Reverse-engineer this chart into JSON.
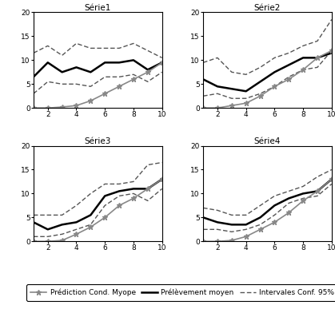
{
  "x": [
    1,
    2,
    3,
    4,
    5,
    6,
    7,
    8,
    9,
    10
  ],
  "series": {
    "Serie1": {
      "mean": [
        6.5,
        9.5,
        7.5,
        8.5,
        7.5,
        9.5,
        9.5,
        10.0,
        8.0,
        9.5
      ],
      "pred": [
        0.0,
        0.0,
        0.2,
        0.5,
        1.5,
        3.0,
        4.5,
        6.0,
        7.5,
        9.5
      ],
      "ci_upper": [
        11.5,
        13.0,
        11.0,
        13.5,
        12.5,
        12.5,
        12.5,
        13.5,
        12.0,
        10.5
      ],
      "ci_lower": [
        3.0,
        5.5,
        5.0,
        5.0,
        4.5,
        6.5,
        6.5,
        7.0,
        5.5,
        7.5
      ]
    },
    "Serie2": {
      "mean": [
        6.0,
        4.5,
        4.0,
        3.5,
        5.5,
        7.5,
        9.0,
        10.5,
        10.5,
        11.5
      ],
      "pred": [
        0.0,
        0.0,
        0.5,
        1.0,
        2.5,
        4.5,
        6.0,
        8.0,
        10.5,
        12.0
      ],
      "ci_upper": [
        9.5,
        10.5,
        7.5,
        7.0,
        8.5,
        10.5,
        11.5,
        13.0,
        14.0,
        18.5
      ],
      "ci_lower": [
        2.5,
        3.0,
        2.0,
        2.0,
        3.0,
        4.5,
        6.5,
        8.0,
        8.5,
        12.0
      ]
    },
    "Serie3": {
      "mean": [
        4.0,
        2.5,
        3.5,
        4.0,
        5.5,
        9.5,
        10.5,
        11.0,
        11.0,
        13.0
      ],
      "pred": [
        0.0,
        0.0,
        0.2,
        1.5,
        3.0,
        5.0,
        7.5,
        9.0,
        11.0,
        13.0
      ],
      "ci_upper": [
        5.5,
        5.5,
        5.5,
        7.5,
        10.0,
        12.0,
        12.0,
        12.5,
        16.0,
        16.5
      ],
      "ci_lower": [
        1.0,
        1.0,
        1.5,
        2.5,
        3.5,
        7.5,
        9.5,
        10.0,
        8.5,
        11.0
      ]
    },
    "Serie4": {
      "mean": [
        5.0,
        4.0,
        3.5,
        3.5,
        5.0,
        7.5,
        9.0,
        10.0,
        10.5,
        13.0
      ],
      "pred": [
        0.0,
        0.0,
        0.2,
        1.0,
        2.5,
        4.0,
        6.0,
        8.5,
        10.5,
        13.0
      ],
      "ci_upper": [
        7.0,
        6.5,
        5.5,
        5.5,
        7.5,
        9.5,
        10.5,
        11.5,
        13.5,
        15.0
      ],
      "ci_lower": [
        2.5,
        2.5,
        2.0,
        2.5,
        3.5,
        5.5,
        8.0,
        9.0,
        9.5,
        12.0
      ]
    }
  },
  "titles": [
    "Série1",
    "Série2",
    "Série3",
    "Série4"
  ],
  "xlim": [
    1,
    10
  ],
  "ylim": [
    0,
    20
  ],
  "xticks": [
    2,
    4,
    6,
    8,
    10
  ],
  "yticks": [
    0,
    5,
    10,
    15,
    20
  ],
  "mean_color": "#000000",
  "pred_color": "#888888",
  "ci_color": "#555555",
  "mean_lw": 1.8,
  "pred_lw": 1.2,
  "ci_lw": 1.0,
  "legend_labels": [
    "Prédiction Cond. Myope",
    "Prélèvement moyen",
    "Intervales Conf. 95%"
  ]
}
